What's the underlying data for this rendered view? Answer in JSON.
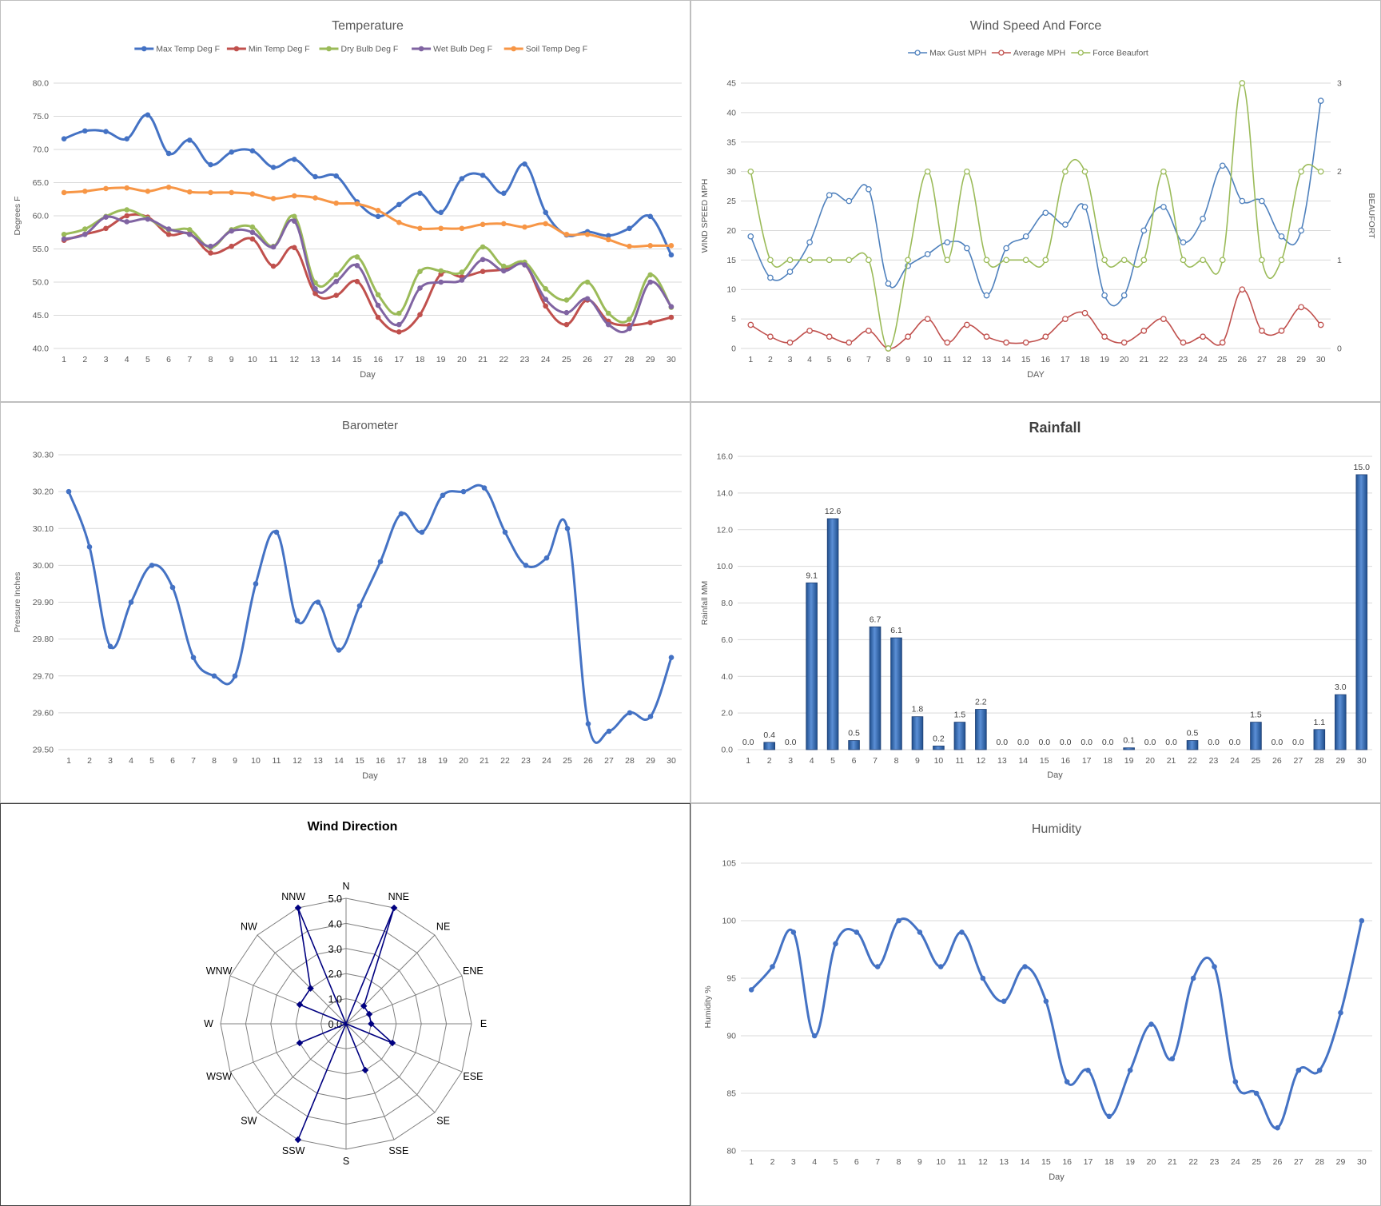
{
  "days": [
    1,
    2,
    3,
    4,
    5,
    6,
    7,
    8,
    9,
    10,
    11,
    12,
    13,
    14,
    15,
    16,
    17,
    18,
    19,
    20,
    21,
    22,
    23,
    24,
    25,
    26,
    27,
    28,
    29,
    30
  ],
  "chart_data": [
    {
      "id": "temperature",
      "type": "line",
      "title": "Temperature",
      "xlabel": "Day",
      "ylabel": "Degrees F",
      "ylim": [
        40,
        80
      ],
      "yticks": [
        "40.0",
        "45.0",
        "50.0",
        "55.0",
        "60.0",
        "65.0",
        "70.0",
        "75.0",
        "80.0"
      ],
      "legend": "top",
      "grid": true,
      "series": [
        {
          "name": "Max Temp Deg F",
          "color": "#4472c4",
          "values": [
            71.6,
            72.8,
            72.7,
            71.6,
            75.2,
            69.4,
            71.4,
            67.7,
            69.6,
            69.8,
            67.3,
            68.5,
            65.9,
            66.0,
            62.1,
            59.9,
            61.7,
            63.4,
            60.5,
            65.6,
            66.1,
            63.4,
            67.8,
            60.5,
            57.1,
            57.6,
            57.0,
            58.1,
            59.9,
            54.1
          ]
        },
        {
          "name": "Min Temp Deg F",
          "color": "#c0504d",
          "values": [
            56.3,
            57.2,
            58.1,
            60.0,
            59.8,
            57.2,
            57.3,
            54.4,
            55.4,
            56.5,
            52.4,
            55.2,
            48.3,
            48.0,
            50.1,
            44.7,
            42.5,
            45.1,
            51.2,
            50.8,
            51.6,
            51.9,
            52.7,
            46.4,
            43.6,
            47.3,
            44.1,
            43.5,
            43.9,
            44.7
          ]
        },
        {
          "name": "Dry Bulb Deg F",
          "color": "#9bbb59",
          "values": [
            57.2,
            58.0,
            59.9,
            60.9,
            59.6,
            57.9,
            57.9,
            55.2,
            57.9,
            58.3,
            55.4,
            59.9,
            49.9,
            51.1,
            53.8,
            48.1,
            45.3,
            51.6,
            51.7,
            51.5,
            55.3,
            52.4,
            53.0,
            49.0,
            47.3,
            50.0,
            45.3,
            44.4,
            51.1,
            46.2
          ]
        },
        {
          "name": "Wet Bulb Deg F",
          "color": "#8064a2",
          "values": [
            56.5,
            57.2,
            59.8,
            59.1,
            59.5,
            58.0,
            57.2,
            55.4,
            57.7,
            57.5,
            55.3,
            59.2,
            49.0,
            50.1,
            52.5,
            46.5,
            43.6,
            49.1,
            50.0,
            50.3,
            53.4,
            51.7,
            52.6,
            47.4,
            45.4,
            47.5,
            43.6,
            43.0,
            50.0,
            46.3
          ]
        },
        {
          "name": "Soil Temp Deg F",
          "color": "#f79646",
          "values": [
            63.5,
            63.7,
            64.1,
            64.2,
            63.7,
            64.3,
            63.6,
            63.5,
            63.5,
            63.3,
            62.6,
            63.0,
            62.7,
            61.9,
            61.8,
            60.8,
            59.0,
            58.1,
            58.1,
            58.1,
            58.7,
            58.8,
            58.3,
            58.8,
            57.2,
            57.2,
            56.4,
            55.4,
            55.5,
            55.5
          ]
        }
      ]
    },
    {
      "id": "wind-speed",
      "type": "line",
      "title": "Wind Speed And Force",
      "xlabel": "DAY",
      "ylabel": "WIND SPEED MPH",
      "ylabel_right": "BEAUFORT",
      "ylim": [
        0,
        45
      ],
      "ylim_right": [
        0,
        3
      ],
      "yticks": [
        "0",
        "5",
        "10",
        "15",
        "20",
        "25",
        "30",
        "35",
        "40",
        "45"
      ],
      "yticks_right": [
        "0",
        "1",
        "2",
        "3"
      ],
      "legend": "top",
      "grid": true,
      "series": [
        {
          "name": "Max Gust MPH",
          "color": "#4f81bd",
          "axis": "left",
          "values": [
            19,
            12,
            13,
            18,
            26,
            25,
            27,
            11,
            14,
            16,
            18,
            17,
            9,
            17,
            19,
            23,
            21,
            24,
            9,
            9,
            20,
            24,
            18,
            22,
            31,
            25,
            25,
            19,
            20,
            42
          ]
        },
        {
          "name": "Average MPH",
          "color": "#c0504d",
          "axis": "left",
          "values": [
            4,
            2,
            1,
            3,
            2,
            1,
            3,
            0,
            2,
            5,
            1,
            4,
            2,
            1,
            1,
            2,
            5,
            6,
            2,
            1,
            3,
            5,
            1,
            2,
            1,
            10,
            3,
            3,
            7,
            4
          ]
        },
        {
          "name": "Force Beaufort",
          "color": "#9bbb59",
          "axis": "right",
          "values": [
            2,
            1,
            1,
            1,
            1,
            1,
            1,
            0,
            1,
            2,
            1,
            2,
            1,
            1,
            1,
            1,
            2,
            2,
            1,
            1,
            1,
            2,
            1,
            1,
            1,
            3,
            1,
            1,
            2,
            2
          ]
        }
      ]
    },
    {
      "id": "barometer",
      "type": "line",
      "title": "Barometer",
      "xlabel": "Day",
      "ylabel": "Pressure Inches",
      "ylim": [
        29.5,
        30.3
      ],
      "yticks": [
        "29.50",
        "29.60",
        "29.70",
        "29.80",
        "29.90",
        "30.00",
        "30.10",
        "30.20",
        "30.30"
      ],
      "grid": true,
      "series": [
        {
          "color": "#4472c4",
          "values": [
            30.2,
            30.05,
            29.78,
            29.9,
            30.0,
            29.94,
            29.75,
            29.7,
            29.7,
            29.95,
            30.09,
            29.85,
            29.9,
            29.77,
            29.89,
            30.01,
            30.14,
            30.09,
            30.19,
            30.2,
            30.21,
            30.09,
            30.0,
            30.02,
            30.1,
            29.57,
            29.55,
            29.6,
            29.59,
            29.75
          ]
        }
      ]
    },
    {
      "id": "rainfall",
      "type": "bar",
      "title": "Rainfall",
      "xlabel": "Day",
      "ylabel": "Rainfall MM",
      "ylim": [
        0,
        16
      ],
      "yticks": [
        "0.0",
        "2.0",
        "4.0",
        "6.0",
        "8.0",
        "10.0",
        "12.0",
        "14.0",
        "16.0"
      ],
      "grid": true,
      "values": [
        0.0,
        0.4,
        0.0,
        9.1,
        12.6,
        0.5,
        6.7,
        6.1,
        1.8,
        0.2,
        1.5,
        2.2,
        0.0,
        0.0,
        0.0,
        0.0,
        0.0,
        0.0,
        0.1,
        0.0,
        0.0,
        0.5,
        0.0,
        0.0,
        1.5,
        0.0,
        0.0,
        1.1,
        3.0,
        15.0
      ],
      "labels": [
        "0.0",
        "0.4",
        "0.0",
        "9.1",
        "12.6",
        "0.5",
        "6.7",
        "6.1",
        "1.8",
        "0.2",
        "1.5",
        "2.2",
        "0.0",
        "0.0",
        "0.0",
        "0.0",
        "0.0",
        "0.0",
        "0.1",
        "0.0",
        "0.0",
        "0.5",
        "0.0",
        "0.0",
        "1.5",
        "0.0",
        "0.0",
        "1.1",
        "3.0",
        "15.0"
      ],
      "color": "#2e5c9e"
    },
    {
      "id": "wind-direction",
      "type": "radar",
      "title": "Wind Direction",
      "rlim": [
        0,
        5
      ],
      "rticks": [
        "0.0",
        "1.0",
        "2.0",
        "3.0",
        "4.0",
        "5.0"
      ],
      "categories": [
        "N",
        "NNE",
        "NE",
        "ENE",
        "E",
        "ESE",
        "SE",
        "SSE",
        "S",
        "SSW",
        "SW",
        "WSW",
        "W",
        "WNW",
        "NW",
        "NNW"
      ],
      "values": [
        0,
        5,
        1,
        1,
        1,
        2,
        0,
        2,
        0,
        5,
        0,
        2,
        0,
        2,
        2,
        5
      ],
      "color": "#000080"
    },
    {
      "id": "humidity",
      "type": "line",
      "title": "Humidity",
      "xlabel": "Day",
      "ylabel": "Humidity %",
      "ylim": [
        80,
        105
      ],
      "yticks": [
        "80",
        "85",
        "90",
        "95",
        "100",
        "105"
      ],
      "grid": true,
      "series": [
        {
          "color": "#4472c4",
          "values": [
            94,
            96,
            99,
            90,
            98,
            99,
            96,
            100,
            99,
            96,
            99,
            95,
            93,
            96,
            93,
            86,
            87,
            83,
            87,
            91,
            88,
            95,
            96,
            86,
            85,
            82,
            87,
            87,
            92,
            100
          ]
        }
      ]
    }
  ]
}
